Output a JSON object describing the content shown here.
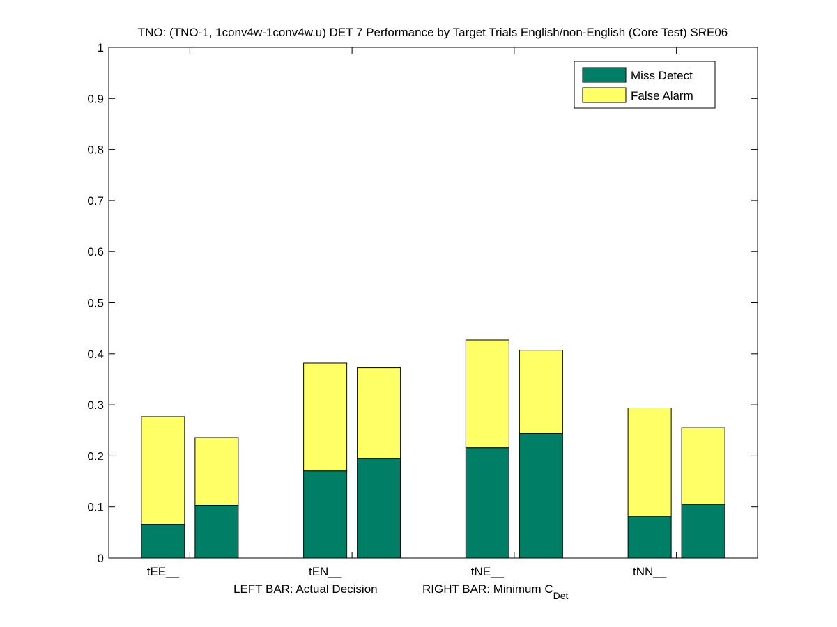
{
  "chart_data": {
    "type": "bar",
    "stacked": true,
    "title": "TNO: (TNO-1, 1conv4w-1conv4w.u) DET 7 Performance by Target Trials English/non-English (Core Test) SRE06",
    "xlabel_left": "LEFT BAR: Actual Decision",
    "xlabel_right_main": "RIGHT BAR: Minimum C",
    "xlabel_right_sub": "Det",
    "ylim": [
      0,
      1
    ],
    "yticks": [
      "0",
      "0.1",
      "0.2",
      "0.3",
      "0.4",
      "0.5",
      "0.6",
      "0.7",
      "0.8",
      "0.9",
      "1"
    ],
    "categories": [
      "tEE__",
      "tEN__",
      "tNE__",
      "tNN__"
    ],
    "bar_roles": [
      "Actual Decision",
      "Minimum CDet"
    ],
    "series": [
      {
        "name": "Miss Detect",
        "color": "#007f66",
        "values": [
          [
            0.066,
            0.103
          ],
          [
            0.171,
            0.195
          ],
          [
            0.216,
            0.244
          ],
          [
            0.082,
            0.105
          ]
        ]
      },
      {
        "name": "False Alarm",
        "color": "#ffff66",
        "values": [
          [
            0.211,
            0.133
          ],
          [
            0.211,
            0.178
          ],
          [
            0.211,
            0.163
          ],
          [
            0.212,
            0.15
          ]
        ]
      }
    ],
    "totals": [
      [
        0.277,
        0.236
      ],
      [
        0.382,
        0.373
      ],
      [
        0.427,
        0.407
      ],
      [
        0.294,
        0.255
      ]
    ],
    "legend": {
      "position": "top-right",
      "entries": [
        "Miss Detect",
        "False Alarm"
      ]
    }
  }
}
